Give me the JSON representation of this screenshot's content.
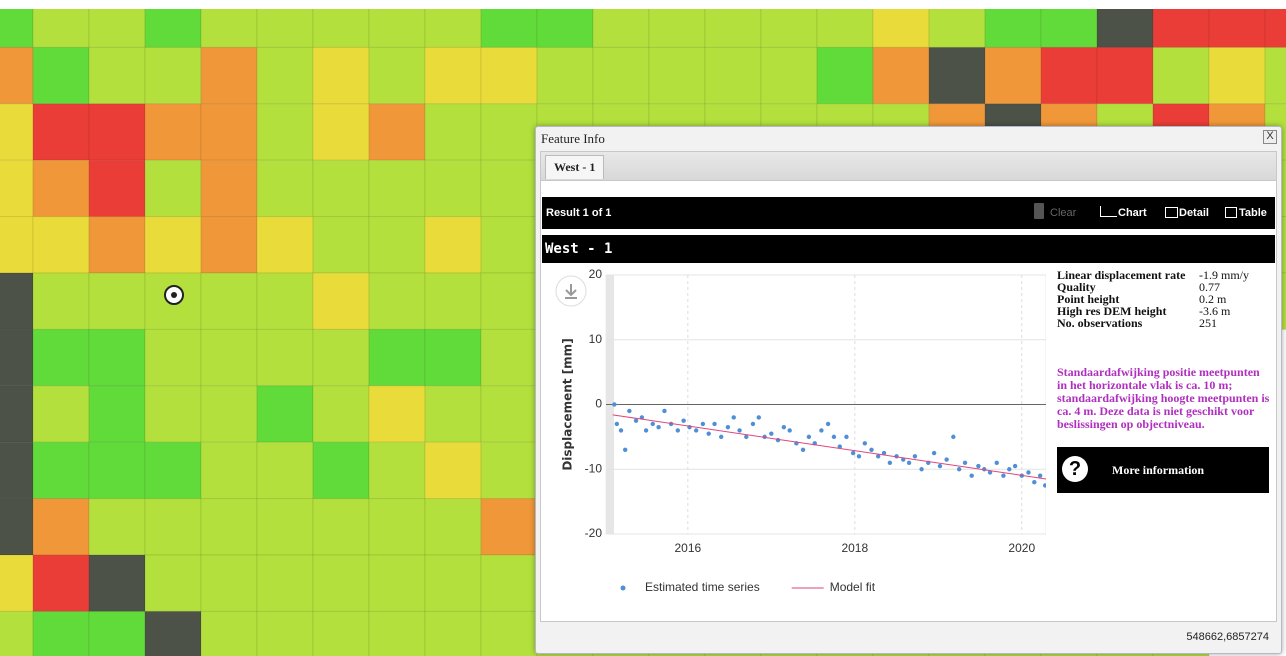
{
  "window": {
    "title": "Feature Info",
    "close": "X",
    "tab": "West - 1"
  },
  "toolbar": {
    "result": "Result 1 of 1",
    "clear": "Clear",
    "chart": "Chart",
    "detail": "Detail",
    "table": "Table"
  },
  "feature": {
    "name": "West - 1"
  },
  "chart_data": {
    "type": "scatter",
    "y_label": "Displacement [mm]",
    "xlim": [
      2015.02,
      2020.29
    ],
    "xticks": [
      2016,
      2018,
      2020
    ],
    "ylim": [
      -20,
      20
    ],
    "yticks": [
      -20,
      -10,
      0,
      10,
      20
    ],
    "grid": true,
    "legend": "bottom",
    "series": [
      {
        "name": "Estimated time series",
        "color": "#4f8fd6",
        "type": "scatter",
        "x": [
          2015.12,
          2015.15,
          2015.2,
          2015.25,
          2015.3,
          2015.38,
          2015.45,
          2015.5,
          2015.58,
          2015.65,
          2015.72,
          2015.8,
          2015.88,
          2015.95,
          2016.02,
          2016.1,
          2016.18,
          2016.25,
          2016.32,
          2016.4,
          2016.48,
          2016.55,
          2016.62,
          2016.7,
          2016.78,
          2016.85,
          2016.92,
          2017.0,
          2017.08,
          2017.15,
          2017.22,
          2017.3,
          2017.38,
          2017.45,
          2017.52,
          2017.6,
          2017.68,
          2017.75,
          2017.82,
          2017.9,
          2017.98,
          2018.05,
          2018.12,
          2018.2,
          2018.28,
          2018.35,
          2018.42,
          2018.5,
          2018.58,
          2018.65,
          2018.72,
          2018.8,
          2018.88,
          2018.95,
          2019.02,
          2019.1,
          2019.18,
          2019.25,
          2019.32,
          2019.4,
          2019.48,
          2019.55,
          2019.62,
          2019.7,
          2019.78,
          2019.85,
          2019.92,
          2020.0,
          2020.08,
          2020.15,
          2020.22,
          2020.28
        ],
        "values": [
          0,
          -3,
          -4,
          -7,
          -1,
          -2.5,
          -2,
          -4,
          -3,
          -3.5,
          -1,
          -3,
          -4,
          -2.5,
          -3.5,
          -4,
          -3,
          -4.5,
          -3,
          -5,
          -3.5,
          -2,
          -4,
          -5,
          -3,
          -2,
          -5,
          -4.5,
          -5.5,
          -3.5,
          -4,
          -6,
          -7,
          -5,
          -6,
          -4,
          -3,
          -5,
          -6.5,
          -5,
          -7.5,
          -8,
          -6,
          -7,
          -8,
          -7.5,
          -9,
          -8,
          -8.5,
          -9,
          -8,
          -10,
          -9,
          -7.5,
          -9.5,
          -8.5,
          -5,
          -10,
          -9,
          -11,
          -9.5,
          -10,
          -10.5,
          -9,
          -11,
          -10,
          -9.5,
          -11,
          -10.5,
          -12,
          -11,
          -12.5
        ]
      },
      {
        "name": "Model fit",
        "color": "#e0457b",
        "type": "line",
        "x": [
          2015.1,
          2020.29
        ],
        "values": [
          -1.6,
          -11.5
        ]
      }
    ]
  },
  "details": {
    "rows": [
      [
        "Linear displacement rate",
        "-1.9 mm/y"
      ],
      [
        "Quality",
        "0.77"
      ],
      [
        "Point height",
        "0.2 m"
      ],
      [
        "High res DEM height",
        "-3.6 m"
      ],
      [
        "No. observations",
        "251"
      ]
    ]
  },
  "note": "Standaardafwijking positie meetpunten in het horizontale vlak is ca. 10 m; standaardafwijking hoogte meetpunten is ca. 4 m. Deze data is niet geschikt voor beslissingen op objectniveau.",
  "more_info": "More information",
  "coordinates": "548662,6857274"
}
